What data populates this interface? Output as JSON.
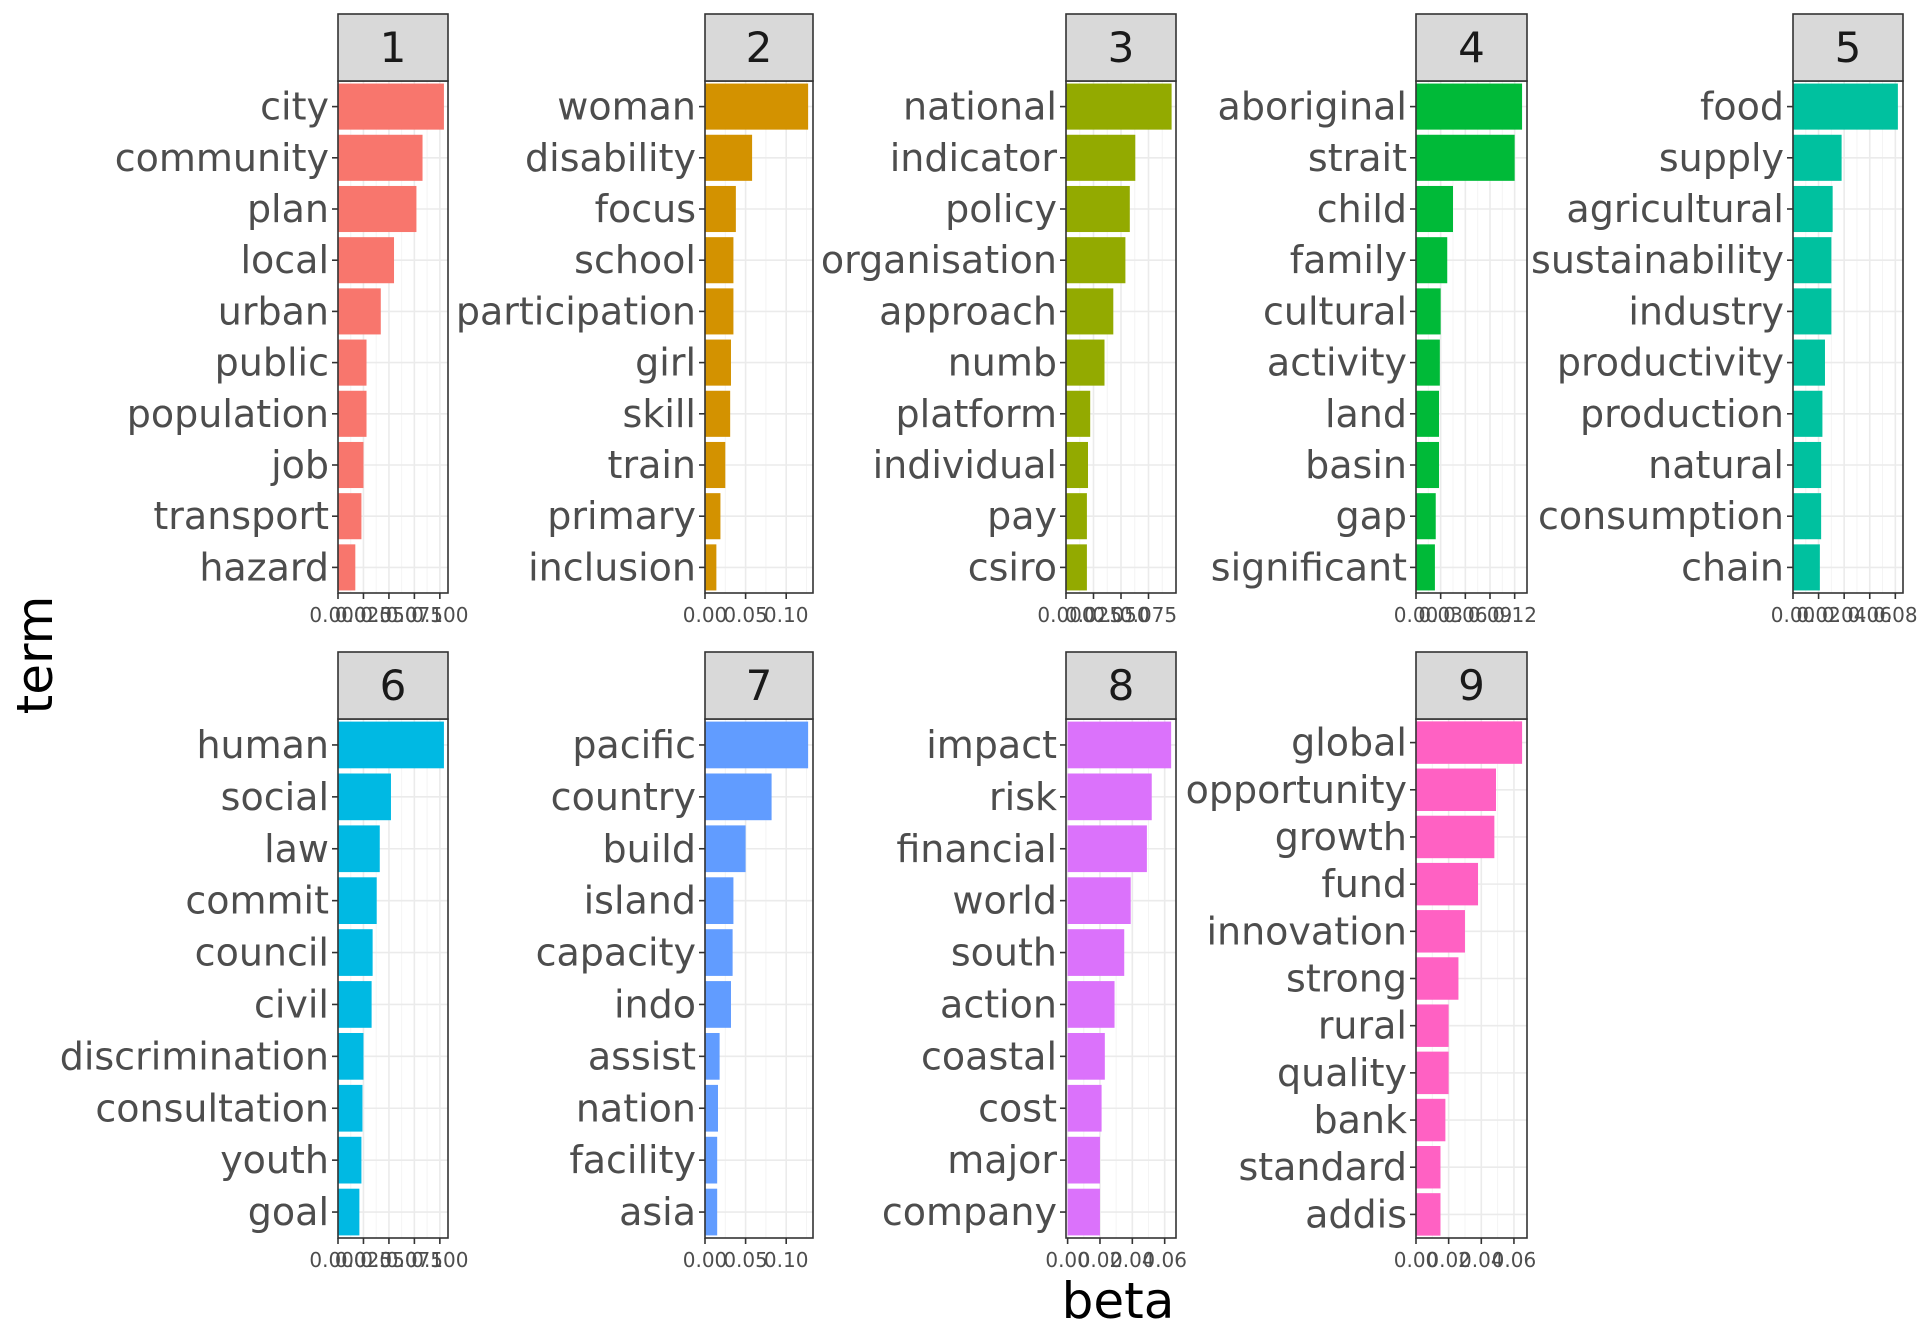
{
  "chart_data": {
    "type": "bar",
    "orientation": "horizontal",
    "facets": "wrap",
    "xlabel": "beta",
    "ylabel": "term",
    "grid": true,
    "legend": "none",
    "panels": [
      {
        "label": "1",
        "color": "#F8766D",
        "terms": [
          "city",
          "community",
          "plan",
          "local",
          "urban",
          "public",
          "population",
          "job",
          "transport",
          "hazard"
        ],
        "values": [
          0.104,
          0.083,
          0.077,
          0.055,
          0.042,
          0.028,
          0.028,
          0.025,
          0.023,
          0.017
        ],
        "xlim": [
          0,
          0.108
        ],
        "ticks": [
          0.0,
          0.025,
          0.05,
          0.075,
          0.1
        ],
        "tick_labels": [
          "0.000",
          "0.025",
          "0.050",
          "0.075",
          "0.100"
        ]
      },
      {
        "label": "2",
        "color": "#D39200",
        "terms": [
          "woman",
          "disability",
          "focus",
          "school",
          "participation",
          "girl",
          "skill",
          "train",
          "primary",
          "inclusion"
        ],
        "values": [
          0.127,
          0.058,
          0.038,
          0.035,
          0.035,
          0.032,
          0.031,
          0.025,
          0.019,
          0.014
        ],
        "xlim": [
          0,
          0.133
        ],
        "ticks": [
          0.0,
          0.05,
          0.1
        ],
        "tick_labels": [
          "0.00",
          "0.05",
          "0.10"
        ]
      },
      {
        "label": "3",
        "color": "#93AA00",
        "terms": [
          "national",
          "indicator",
          "policy",
          "organisation",
          "approach",
          "numb",
          "platform",
          "individual",
          "pay",
          "csiro"
        ],
        "values": [
          0.096,
          0.063,
          0.058,
          0.054,
          0.043,
          0.035,
          0.022,
          0.02,
          0.019,
          0.019
        ],
        "xlim": [
          0,
          0.1
        ],
        "ticks": [
          0.0,
          0.025,
          0.05,
          0.075
        ],
        "tick_labels": [
          "0.000",
          "0.025",
          "0.050",
          "0.075"
        ]
      },
      {
        "label": "4",
        "color": "#00BA38",
        "terms": [
          "aboriginal",
          "strait",
          "child",
          "family",
          "cultural",
          "activity",
          "land",
          "basin",
          "gap",
          "significant"
        ],
        "values": [
          0.129,
          0.12,
          0.045,
          0.038,
          0.03,
          0.029,
          0.028,
          0.028,
          0.024,
          0.023
        ],
        "xlim": [
          0,
          0.135
        ],
        "ticks": [
          0.0,
          0.03,
          0.06,
          0.09,
          0.12
        ],
        "tick_labels": [
          "0.00",
          "0.03",
          "0.06",
          "0.09",
          "0.12"
        ]
      },
      {
        "label": "5",
        "color": "#00C19F",
        "terms": [
          "food",
          "supply",
          "agricultural",
          "sustainability",
          "industry",
          "productivity",
          "production",
          "natural",
          "consumption",
          "chain"
        ],
        "values": [
          0.082,
          0.038,
          0.031,
          0.03,
          0.03,
          0.025,
          0.023,
          0.022,
          0.022,
          0.021
        ],
        "xlim": [
          0,
          0.086
        ],
        "ticks": [
          0.0,
          0.02,
          0.04,
          0.06,
          0.08
        ],
        "tick_labels": [
          "0.00",
          "0.02",
          "0.04",
          "0.06",
          "0.08"
        ]
      },
      {
        "label": "6",
        "color": "#00B9E3",
        "terms": [
          "human",
          "social",
          "law",
          "commit",
          "council",
          "civil",
          "discrimination",
          "consultation",
          "youth",
          "goal"
        ],
        "values": [
          0.104,
          0.052,
          0.041,
          0.038,
          0.034,
          0.033,
          0.025,
          0.024,
          0.023,
          0.021
        ],
        "xlim": [
          0,
          0.108
        ],
        "ticks": [
          0.0,
          0.025,
          0.05,
          0.075,
          0.1
        ],
        "tick_labels": [
          "0.000",
          "0.025",
          "0.050",
          "0.075",
          "0.100"
        ]
      },
      {
        "label": "7",
        "color": "#619CFF",
        "terms": [
          "pacific",
          "country",
          "build",
          "island",
          "capacity",
          "indo",
          "assist",
          "nation",
          "facility",
          "asia"
        ],
        "values": [
          0.127,
          0.082,
          0.05,
          0.035,
          0.034,
          0.032,
          0.018,
          0.016,
          0.015,
          0.015
        ],
        "xlim": [
          0,
          0.133
        ],
        "ticks": [
          0.0,
          0.05,
          0.1
        ],
        "tick_labels": [
          "0.00",
          "0.05",
          "0.10"
        ]
      },
      {
        "label": "8",
        "color": "#DB72FB",
        "terms": [
          "impact",
          "risk",
          "financial",
          "world",
          "south",
          "action",
          "coastal",
          "cost",
          "major",
          "company"
        ],
        "values": [
          0.064,
          0.052,
          0.049,
          0.039,
          0.035,
          0.029,
          0.023,
          0.021,
          0.02,
          0.02
        ],
        "xlim": [
          -0.001,
          0.067
        ],
        "ticks": [
          0.0,
          0.02,
          0.04,
          0.06
        ],
        "tick_labels": [
          "0.00",
          "0.02",
          "0.04",
          "0.06"
        ]
      },
      {
        "label": "9",
        "color": "#FF61C3",
        "terms": [
          "global",
          "opportunity",
          "growth",
          "fund",
          "innovation",
          "strong",
          "rural",
          "quality",
          "bank",
          "standard",
          "addis"
        ],
        "values": [
          0.065,
          0.049,
          0.048,
          0.038,
          0.03,
          0.026,
          0.02,
          0.02,
          0.018,
          0.015,
          0.015
        ],
        "xlim": [
          0,
          0.068
        ],
        "ticks": [
          0.0,
          0.02,
          0.04,
          0.06
        ],
        "tick_labels": [
          "0.00",
          "0.02",
          "0.04",
          "0.06"
        ]
      }
    ]
  }
}
